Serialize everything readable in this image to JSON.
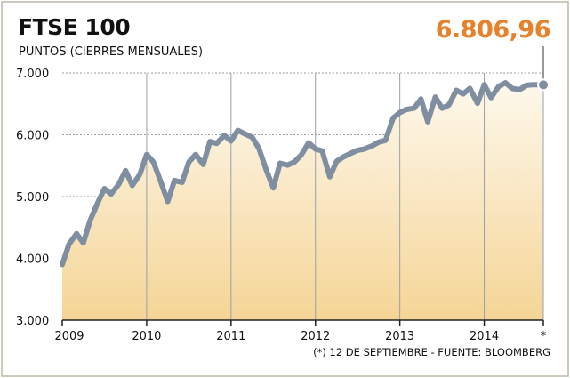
{
  "header": {
    "title": "FTSE 100",
    "subtitle": "PUNTOS (CIERRES MENSUALES)",
    "latest_value": "6.806,96"
  },
  "footer": {
    "note": "(*) 12 DE SEPTIEMBRE - FUENTE: BLOOMBERG"
  },
  "colors": {
    "line": "#7f8ea0",
    "accent": "#e8822a",
    "fill_top": "#fdf8ec",
    "fill_bottom": "#f5d596",
    "grid": "#9aa0a8"
  },
  "chart_data": {
    "type": "area",
    "title": "FTSE 100",
    "subtitle": "PUNTOS (CIERRES MENSUALES)",
    "xlabel": "",
    "ylabel": "",
    "ylim": [
      3000,
      7000
    ],
    "y_ticks": [
      3000,
      4000,
      5000,
      6000,
      7000
    ],
    "y_tick_labels": [
      "3.000",
      "4.000",
      "5.000",
      "6.000",
      "7.000"
    ],
    "x_ticks": [
      2009,
      2010,
      2011,
      2012,
      2013,
      2014,
      2014.7
    ],
    "x_tick_labels": [
      "2009",
      "2010",
      "2011",
      "2012",
      "2013",
      "2014",
      "*"
    ],
    "xlim": [
      2009,
      2014.7
    ],
    "grid": "vertical",
    "series": [
      {
        "x": [
          2009.0,
          2009.08,
          2009.17,
          2009.25,
          2009.33,
          2009.42,
          2009.5,
          2009.58,
          2009.67,
          2009.75,
          2009.83,
          2009.92,
          2010.0,
          2010.08,
          2010.17,
          2010.25,
          2010.33,
          2010.42,
          2010.5,
          2010.58,
          2010.67,
          2010.75,
          2010.83,
          2010.92,
          2011.0,
          2011.08,
          2011.17,
          2011.25,
          2011.33,
          2011.42,
          2011.5,
          2011.58,
          2011.67,
          2011.75,
          2011.83,
          2011.92,
          2012.0,
          2012.08,
          2012.17,
          2012.25,
          2012.33,
          2012.42,
          2012.5,
          2012.58,
          2012.67,
          2012.75,
          2012.83,
          2012.92,
          2013.0,
          2013.08,
          2013.17,
          2013.25,
          2013.33,
          2013.42,
          2013.5,
          2013.58,
          2013.67,
          2013.75,
          2013.83,
          2013.92,
          2014.0,
          2014.08,
          2014.17,
          2014.25,
          2014.33,
          2014.42,
          2014.5,
          2014.58,
          2014.7
        ],
        "values": [
          3900,
          4230,
          4400,
          4250,
          4610,
          4900,
          5130,
          5040,
          5200,
          5420,
          5180,
          5360,
          5680,
          5560,
          5230,
          4920,
          5260,
          5230,
          5560,
          5680,
          5520,
          5890,
          5860,
          5990,
          5900,
          6070,
          6010,
          5960,
          5780,
          5420,
          5140,
          5540,
          5510,
          5560,
          5670,
          5870,
          5770,
          5740,
          5320,
          5570,
          5640,
          5700,
          5750,
          5770,
          5820,
          5880,
          5910,
          6270,
          6360,
          6410,
          6430,
          6580,
          6210,
          6610,
          6430,
          6480,
          6720,
          6660,
          6750,
          6510,
          6810,
          6600,
          6780,
          6840,
          6750,
          6730,
          6800,
          6810,
          6806.96
        ]
      }
    ],
    "annotation": {
      "x": 2014.7,
      "y": 6806.96,
      "label": "6.806,96"
    }
  }
}
